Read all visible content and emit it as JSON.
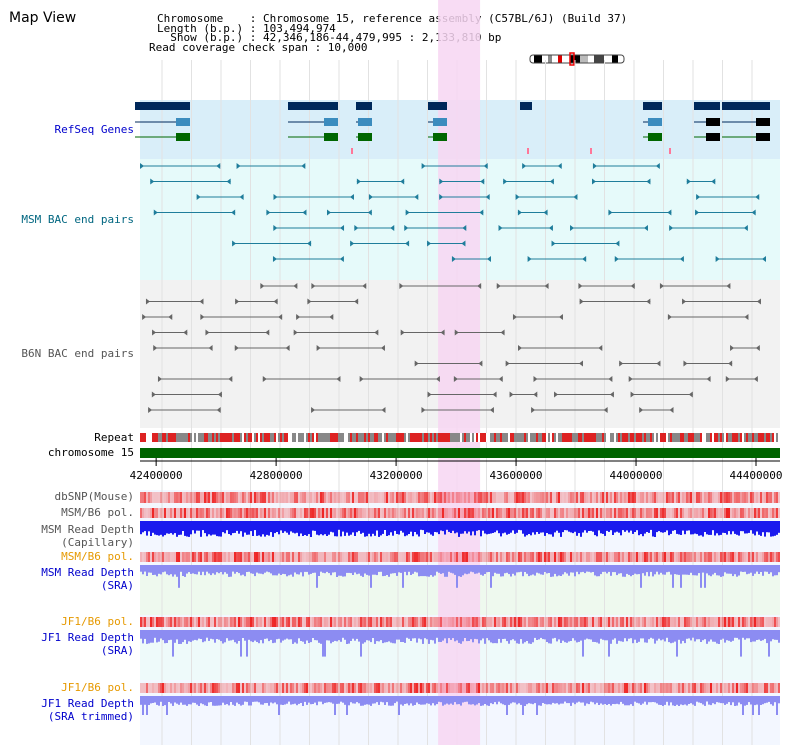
{
  "title": "Map View",
  "info": {
    "chromosome_label": "Chromosome    : Chromosome 15, reference assembly (C57BL/6J) (Build 37)",
    "length_label": "Length (b.p.) : 103,494,974",
    "show_label": "  Show (b.p.) : 42,346,186-44,479,995 : 2,133,810 bp",
    "coverage_label": "Read coverage check span : 10,000"
  },
  "axis": {
    "start": 42346186,
    "end": 44479995,
    "ticks": [
      "42400000",
      "42800000",
      "43200000",
      "43600000",
      "44000000",
      "44400000"
    ],
    "tick_values": [
      42400000,
      42800000,
      43200000,
      43600000,
      44000000,
      44400000
    ]
  },
  "highlight": {
    "from": 43340000,
    "to": 43480000
  },
  "tracks": {
    "refseq": {
      "label": "RefSeq Genes",
      "color": "#0000cc"
    },
    "msm_bac": {
      "label": "MSM BAC end pairs",
      "color": "#006680"
    },
    "b6n_bac": {
      "label": "B6N BAC end pairs",
      "color": "#555555"
    },
    "repeat": {
      "label": "Repeat",
      "color": "#000000"
    },
    "chromosome": {
      "label": "chromosome 15",
      "color": "#000000"
    },
    "dbsnp": {
      "label": "dbSNP(Mouse)",
      "color": "#555555"
    },
    "msm_b6_pol": {
      "label": "MSM/B6 pol.",
      "color": "#555555"
    },
    "msm_depth_cap": {
      "label": "MSM Read Depth\n(Capillary)",
      "color": "#555555"
    },
    "msm_b6_pol2": {
      "label": "MSM/B6 pol.",
      "color": "#e69900"
    },
    "msm_depth_sra": {
      "label": "MSM Read Depth\n(SRA)",
      "color": "#0000cc"
    },
    "jf1_b6_pol": {
      "label": "JF1/B6 pol.",
      "color": "#e69900"
    },
    "jf1_depth_sra": {
      "label": "JF1 Read Depth\n(SRA)",
      "color": "#0000cc"
    },
    "jf1_b6_pol2": {
      "label": "JF1/B6 pol.",
      "color": "#e69900"
    },
    "jf1_depth_trim": {
      "label": "JF1 Read Depth\n(SRA trimmed)",
      "color": "#0000cc"
    }
  },
  "colors": {
    "refseq_bg": "#d9eef9",
    "msm_bg": "#e6fafa",
    "b6n_bg": "#f2f2f2",
    "highlight": "#f7d6f2",
    "gene_dark": "#00285a",
    "gene_mid": "#3c8cbe",
    "gene_green": "#006600",
    "msm_pair": "#1f7d9b",
    "b6n_pair": "#666666",
    "chromosome_bar": "#006400",
    "depth_blue": "#1a1aee",
    "depth_sra": "#8c8cf2",
    "pol_red": "#ee2222"
  }
}
